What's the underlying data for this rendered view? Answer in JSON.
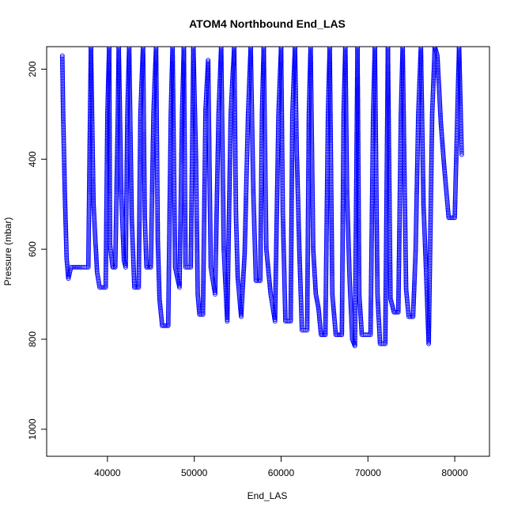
{
  "chart_data": {
    "type": "scatter",
    "title": "ATOM4 Northbound End_LAS",
    "xlabel": "End_LAS",
    "ylabel": "Pressure (mbar)",
    "xlim": [
      33000,
      84000
    ],
    "ylim": [
      1060,
      150
    ],
    "y_reversed": true,
    "x_ticks": [
      40000,
      50000,
      60000,
      70000,
      80000
    ],
    "y_ticks": [
      200,
      400,
      600,
      800,
      1000
    ],
    "grid": false,
    "legend": "none",
    "series_color": "#0000ff",
    "marker": "open-circle",
    "series": [
      {
        "points": [
          [
            34800,
            170
          ],
          [
            34900,
            300
          ],
          [
            35100,
            480
          ],
          [
            35300,
            620
          ],
          [
            35500,
            665
          ],
          [
            35800,
            640
          ],
          [
            37000,
            640
          ],
          [
            37800,
            640
          ],
          [
            38000,
            300
          ],
          [
            38100,
            150
          ],
          [
            38400,
            500
          ],
          [
            38800,
            650
          ],
          [
            39100,
            685
          ],
          [
            39800,
            685
          ],
          [
            40000,
            300
          ],
          [
            40200,
            150
          ],
          [
            40300,
            590
          ],
          [
            40600,
            640
          ],
          [
            40900,
            640
          ],
          [
            41200,
            300
          ],
          [
            41300,
            150
          ],
          [
            41600,
            480
          ],
          [
            41900,
            625
          ],
          [
            42100,
            640
          ],
          [
            42300,
            300
          ],
          [
            42500,
            150
          ],
          [
            42800,
            530
          ],
          [
            43100,
            685
          ],
          [
            43600,
            685
          ],
          [
            43800,
            300
          ],
          [
            44100,
            150
          ],
          [
            44300,
            530
          ],
          [
            44500,
            640
          ],
          [
            45000,
            640
          ],
          [
            45300,
            300
          ],
          [
            45600,
            150
          ],
          [
            45800,
            580
          ],
          [
            46000,
            710
          ],
          [
            46300,
            770
          ],
          [
            47000,
            770
          ],
          [
            47300,
            300
          ],
          [
            47500,
            150
          ],
          [
            47800,
            640
          ],
          [
            48300,
            685
          ],
          [
            48600,
            300
          ],
          [
            48800,
            150
          ],
          [
            49000,
            640
          ],
          [
            49600,
            640
          ],
          [
            49900,
            150
          ],
          [
            50200,
            400
          ],
          [
            50400,
            700
          ],
          [
            50600,
            745
          ],
          [
            51000,
            745
          ],
          [
            51300,
            290
          ],
          [
            51600,
            180
          ],
          [
            51900,
            640
          ],
          [
            52400,
            700
          ],
          [
            52800,
            300
          ],
          [
            53100,
            150
          ],
          [
            53400,
            600
          ],
          [
            53800,
            760
          ],
          [
            54200,
            300
          ],
          [
            54600,
            150
          ],
          [
            54800,
            520
          ],
          [
            55000,
            660
          ],
          [
            55400,
            750
          ],
          [
            55800,
            610
          ],
          [
            56200,
            300
          ],
          [
            56500,
            150
          ],
          [
            56800,
            470
          ],
          [
            57100,
            670
          ],
          [
            57600,
            670
          ],
          [
            57800,
            300
          ],
          [
            58000,
            150
          ],
          [
            58300,
            600
          ],
          [
            58800,
            700
          ],
          [
            59300,
            760
          ],
          [
            59700,
            300
          ],
          [
            60000,
            150
          ],
          [
            60200,
            520
          ],
          [
            60500,
            760
          ],
          [
            61100,
            760
          ],
          [
            61300,
            300
          ],
          [
            61600,
            150
          ],
          [
            61800,
            380
          ],
          [
            62100,
            600
          ],
          [
            62400,
            780
          ],
          [
            63000,
            780
          ],
          [
            63200,
            300
          ],
          [
            63400,
            150
          ],
          [
            63700,
            600
          ],
          [
            64000,
            700
          ],
          [
            64300,
            730
          ],
          [
            64600,
            790
          ],
          [
            65100,
            790
          ],
          [
            65400,
            300
          ],
          [
            65600,
            150
          ],
          [
            65900,
            700
          ],
          [
            66300,
            790
          ],
          [
            67000,
            790
          ],
          [
            67200,
            300
          ],
          [
            67400,
            150
          ],
          [
            67600,
            480
          ],
          [
            67900,
            670
          ],
          [
            68200,
            800
          ],
          [
            68500,
            815
          ],
          [
            68800,
            150
          ],
          [
            69000,
            700
          ],
          [
            69300,
            790
          ],
          [
            70300,
            790
          ],
          [
            70600,
            300
          ],
          [
            70800,
            150
          ],
          [
            71100,
            700
          ],
          [
            71400,
            810
          ],
          [
            72000,
            810
          ],
          [
            72300,
            150
          ],
          [
            72600,
            710
          ],
          [
            73000,
            740
          ],
          [
            73500,
            740
          ],
          [
            73800,
            300
          ],
          [
            74000,
            150
          ],
          [
            74400,
            690
          ],
          [
            74700,
            750
          ],
          [
            75200,
            750
          ],
          [
            75500,
            600
          ],
          [
            75800,
            300
          ],
          [
            76100,
            150
          ],
          [
            76400,
            500
          ],
          [
            76700,
            650
          ],
          [
            77000,
            810
          ],
          [
            77400,
            300
          ],
          [
            77700,
            150
          ],
          [
            78000,
            170
          ],
          [
            78400,
            320
          ],
          [
            78800,
            420
          ],
          [
            79300,
            530
          ],
          [
            80000,
            530
          ],
          [
            80300,
            300
          ],
          [
            80500,
            150
          ],
          [
            80800,
            390
          ]
        ]
      }
    ]
  }
}
